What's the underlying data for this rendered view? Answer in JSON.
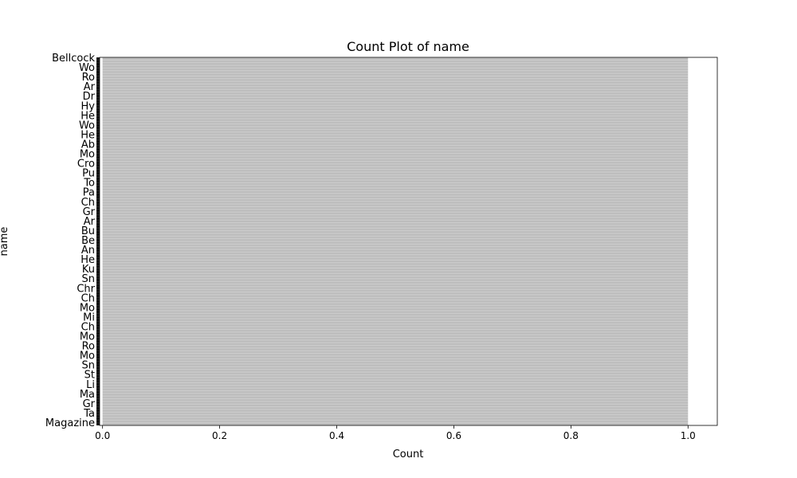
{
  "chart_data": {
    "type": "bar",
    "orientation": "horizontal",
    "title": "Count Plot of name",
    "xlabel": "Count",
    "ylabel": "name",
    "xlim": [
      -0.005,
      1.05
    ],
    "x_ticks": [
      0.0,
      0.2,
      0.4,
      0.6,
      0.8,
      1.0
    ],
    "x_tick_labels": [
      "0.0",
      "0.2",
      "0.4",
      "0.6",
      "0.8",
      "1.0"
    ],
    "grid": false,
    "legend": "none",
    "bar_color": "#b0b0b0",
    "edge_color": "#000000",
    "y_tick_labels_legible": [
      "Bellcock",
      "Wo",
      "Ro",
      "Ar",
      "Dr",
      "Hy",
      "He",
      "Wo",
      "He",
      "Ab",
      "Mo",
      "Cro",
      "Pu",
      "To",
      "Pa",
      "Ch",
      "Gr",
      "Ar",
      "Bu",
      "Be",
      "An",
      "He",
      "Ku",
      "Sn",
      "Chr",
      "Ch",
      "Mo",
      "Mi",
      "Ch",
      "Mo",
      "Ro",
      "Mo",
      "Sn",
      "St",
      "Li",
      "Ma",
      "Gr",
      "Ta",
      "Magazine"
    ],
    "category_count_estimate": 600,
    "value_per_category": 1
  }
}
